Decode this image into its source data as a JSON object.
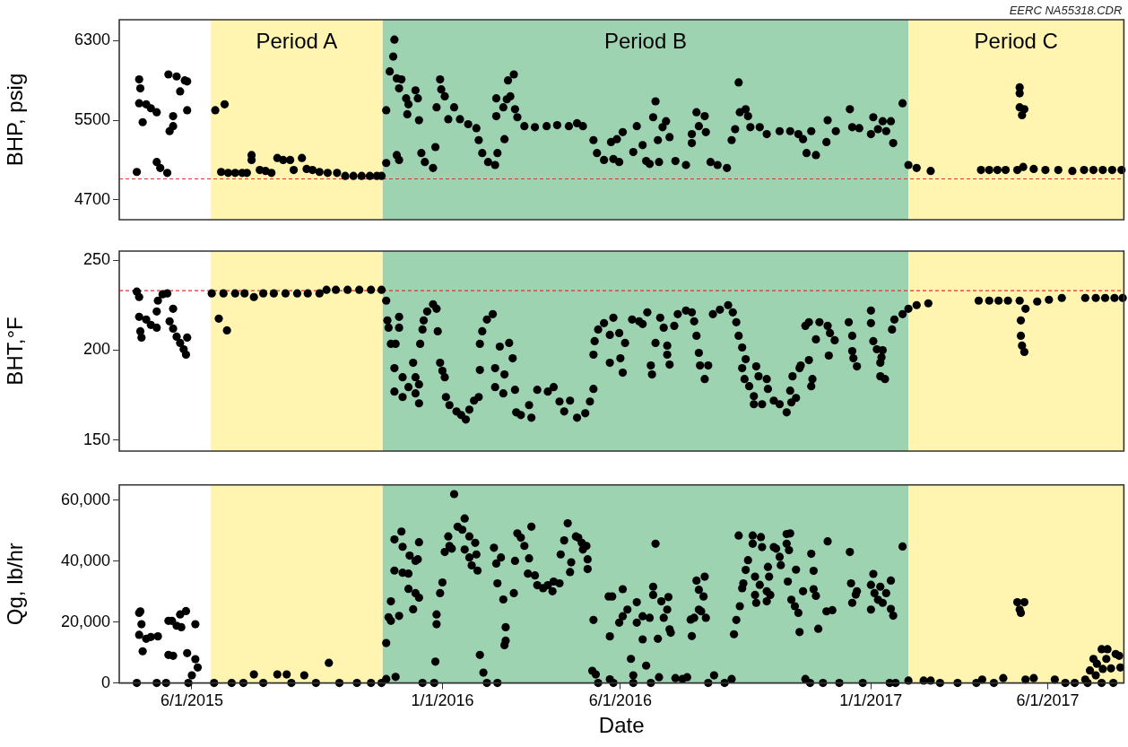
{
  "chart_data": [
    {
      "type": "scatter",
      "ylabel": "BHP, psig",
      "annotations": [
        "EERC NA55318.CDR"
      ],
      "tick_labels": "y",
      "marker": "circle",
      "xlim": [
        "2015-03-31",
        "2017-08-05"
      ],
      "ylim": [
        4500,
        6510
      ],
      "yticks": [
        4700,
        5500,
        6300
      ],
      "bands": [
        {
          "axis": "x",
          "from": "2015-06-17",
          "to": "2015-11-11",
          "label": "Period A",
          "color": "#fff5b0"
        },
        {
          "axis": "x",
          "from": "2015-11-11",
          "to": "2017-02-02",
          "label": "Period B",
          "color": "#9dd3b0"
        },
        {
          "axis": "x",
          "from": "2017-02-02",
          "to": "2017-08-05",
          "label": "Period C",
          "color": "#fff5b0"
        }
      ],
      "ref_lines": [
        {
          "axis": "y",
          "value": 4910,
          "color": "#e03030",
          "line_style": "dashed"
        }
      ],
      "series": [
        {
          "color": "#000000",
          "x": [
            "2015-04-15",
            "2015-04-17",
            "2015-04-18",
            "2015-04-17",
            "2015-04-20",
            "2015-04-23",
            "2015-04-27",
            "2015-05-02",
            "2015-05-02",
            "2015-05-05",
            "2015-05-11",
            "2015-05-12",
            "2015-05-13",
            "2015-05-16",
            "2015-05-16",
            "2015-05-19",
            "2015-05-22",
            "2015-05-26",
            "2015-05-28",
            "2015-05-28",
            "2015-06-21",
            "2015-06-29",
            "2015-06-26",
            "2015-07-02",
            "2015-07-08",
            "2015-07-14",
            "2015-07-18",
            "2015-07-22",
            "2015-07-22",
            "2015-07-29",
            "2015-08-03",
            "2015-08-08",
            "2015-08-13",
            "2015-08-18",
            "2015-08-24",
            "2015-08-27",
            "2015-09-03",
            "2015-09-07",
            "2015-09-12",
            "2015-09-18",
            "2015-09-25",
            "2015-10-03",
            "2015-10-10",
            "2015-10-17",
            "2015-10-24",
            "2015-10-31",
            "2015-11-06",
            "2015-11-10",
            "2015-11-14",
            "2015-11-14",
            "2015-11-21",
            "2015-11-20",
            "2015-11-17",
            "2015-11-23",
            "2015-11-27",
            "2015-11-25",
            "2015-11-23",
            "2015-11-25",
            "2015-12-01",
            "2015-12-03",
            "2015-12-02",
            "2015-12-09",
            "2015-12-11",
            "2015-12-12",
            "2015-12-14",
            "2015-12-17",
            "2015-12-24",
            "2015-12-26",
            "2015-12-30",
            "2015-12-31",
            "2015-12-27",
            "2016-01-03",
            "2016-01-11",
            "2016-01-06",
            "2016-01-16",
            "2016-01-23",
            "2016-01-30",
            "2016-02-01",
            "2016-02-04",
            "2016-02-09",
            "2016-02-15",
            "2016-02-17",
            "2016-02-16",
            "2016-02-16",
            "2016-02-22",
            "2016-02-23",
            "2016-02-25",
            "2016-02-28",
            "2016-02-26",
            "2016-03-02",
            "2016-03-03",
            "2016-03-05",
            "2016-03-11",
            "2016-03-20",
            "2016-03-30",
            "2016-04-08",
            "2016-04-18",
            "2016-04-25",
            "2016-04-30",
            "2016-05-09",
            "2016-05-12",
            "2016-05-18",
            "2016-05-24",
            "2016-05-26",
            "2016-05-31",
            "2016-05-29",
            "2016-06-03",
            "2016-06-12",
            "2016-06-15",
            "2016-06-20",
            "2016-06-23",
            "2016-06-26",
            "2016-06-29",
            "2016-07-01",
            "2016-07-03",
            "2016-07-07",
            "2016-07-10",
            "2016-07-13",
            "2016-07-04",
            "2016-07-18",
            "2016-07-27",
            "2016-08-01",
            "2016-08-01",
            "2016-08-05",
            "2016-08-07",
            "2016-08-12",
            "2016-08-13",
            "2016-08-17",
            "2016-08-23",
            "2016-08-31",
            "2016-09-04",
            "2016-09-07",
            "2016-09-10",
            "2016-09-11",
            "2016-09-16",
            "2016-09-18",
            "2016-09-20",
            "2016-09-28",
            "2016-10-04",
            "2016-10-15",
            "2016-10-24",
            "2016-10-31",
            "2016-11-04",
            "2016-11-07",
            "2016-11-15",
            "2016-11-11",
            "2016-11-24",
            "2016-11-25",
            "2016-12-02",
            "2016-12-14",
            "2016-12-16",
            "2016-12-22",
            "2017-01-01",
            "2017-01-03",
            "2017-01-07",
            "2017-01-11",
            "2017-01-14",
            "2017-01-18",
            "2017-01-20",
            "2017-01-28",
            "2017-02-02",
            "2017-02-09",
            "2017-02-21",
            "2017-04-05",
            "2017-04-12",
            "2017-04-19",
            "2017-04-26",
            "2017-05-06",
            "2017-05-08",
            "2017-05-08",
            "2017-05-08",
            "2017-05-10",
            "2017-05-12",
            "2017-05-11",
            "2017-05-20",
            "2017-05-30",
            "2017-06-10",
            "2017-06-22",
            "2017-07-02",
            "2017-07-10",
            "2017-07-18",
            "2017-07-26",
            "2017-08-03"
          ],
          "values": [
            4980,
            5910,
            5820,
            5670,
            5480,
            5660,
            5620,
            5580,
            5080,
            5020,
            4970,
            5960,
            5390,
            5440,
            5540,
            5940,
            5790,
            5900,
            5890,
            5600,
            5600,
            5660,
            4980,
            4970,
            4970,
            4970,
            4970,
            5150,
            5100,
            5000,
            4990,
            4970,
            5120,
            5100,
            5100,
            5000,
            5120,
            5010,
            5000,
            4980,
            4970,
            4970,
            4940,
            4940,
            4940,
            4940,
            4940,
            4940,
            5600,
            5070,
            6310,
            6140,
            5990,
            5920,
            5910,
            5820,
            5150,
            5100,
            5720,
            5660,
            5560,
            5800,
            5720,
            5500,
            5170,
            5080,
            5020,
            5230,
            5910,
            5810,
            5630,
            5740,
            5630,
            5510,
            5510,
            5460,
            5420,
            5300,
            5170,
            5080,
            5050,
            5170,
            5720,
            5540,
            5630,
            5310,
            5710,
            5740,
            5900,
            5960,
            5610,
            5530,
            5440,
            5430,
            5440,
            5450,
            5440,
            5470,
            5440,
            5300,
            5170,
            5100,
            5280,
            5110,
            5080,
            5310,
            5380,
            5180,
            5440,
            5250,
            5090,
            5060,
            5530,
            5690,
            5300,
            5430,
            5490,
            5330,
            5080,
            5090,
            5050,
            5360,
            5270,
            5580,
            5440,
            5540,
            5380,
            5080,
            5050,
            5020,
            5300,
            5410,
            5880,
            5580,
            5610,
            5540,
            5430,
            5430,
            5360,
            5390,
            5390,
            5360,
            5310,
            5170,
            5150,
            5390,
            5280,
            5500,
            5390,
            5610,
            5430,
            5420,
            5360,
            5530,
            5410,
            5490,
            5390,
            5490,
            5270,
            5670,
            5050,
            5020,
            4990,
            5000,
            5000,
            5000,
            5000,
            5000,
            5830,
            5770,
            5630,
            5550,
            5610,
            5030,
            5010,
            5000,
            5000,
            4990,
            5000,
            5000,
            5000,
            5000,
            5000
          ]
        }
      ]
    },
    {
      "type": "scatter",
      "ylabel": "BHT,°F",
      "tick_labels": "y",
      "marker": "circle",
      "xlim": [
        "2015-03-31",
        "2017-08-05"
      ],
      "ylim": [
        144,
        255
      ],
      "yticks": [
        150,
        200,
        250
      ],
      "bands": [
        {
          "axis": "x",
          "from": "2015-06-17",
          "to": "2015-11-11",
          "color": "#fff5b0"
        },
        {
          "axis": "x",
          "from": "2015-11-11",
          "to": "2017-02-02",
          "color": "#9dd3b0"
        },
        {
          "axis": "x",
          "from": "2017-02-02",
          "to": "2017-08-05",
          "color": "#fff5b0"
        }
      ],
      "ref_lines": [
        {
          "axis": "y",
          "value": 233,
          "color": "#e03030",
          "line_style": "dashed"
        }
      ],
      "series": [
        {
          "color": "#000000",
          "x": [
            "2015-04-15",
            "2015-04-17",
            "2015-04-17",
            "2015-04-18",
            "2015-04-19",
            "2015-04-23",
            "2015-04-27",
            "2015-05-02",
            "2015-05-02",
            "2015-05-03",
            "2015-05-07",
            "2015-05-11",
            "2015-05-13",
            "2015-05-16",
            "2015-05-16",
            "2015-05-19",
            "2015-05-22",
            "2015-05-25",
            "2015-05-27",
            "2015-05-28",
            "2015-06-18",
            "2015-06-24",
            "2015-07-01",
            "2015-06-28",
            "2015-07-08",
            "2015-07-16",
            "2015-07-24",
            "2015-08-01",
            "2015-08-10",
            "2015-08-20",
            "2015-08-30",
            "2015-09-08",
            "2015-09-18",
            "2015-09-24",
            "2015-10-02",
            "2015-10-12",
            "2015-10-22",
            "2015-11-01",
            "2015-11-10",
            "2015-11-14",
            "2015-11-15",
            "2015-11-16",
            "2015-11-18",
            "2015-11-22",
            "2015-11-21",
            "2015-11-21",
            "2015-11-25",
            "2015-11-25",
            "2015-11-28",
            "2015-11-28",
            "2015-12-03",
            "2015-12-07",
            "2015-12-09",
            "2015-12-09",
            "2015-12-12",
            "2015-12-12",
            "2015-12-13",
            "2015-12-15",
            "2015-12-16",
            "2015-12-19",
            "2015-12-24",
            "2015-12-27",
            "2015-12-28",
            "2015-12-30",
            "2016-01-01",
            "2016-01-03",
            "2016-01-04",
            "2016-01-07",
            "2016-01-13",
            "2016-01-17",
            "2016-01-21",
            "2016-01-24",
            "2016-01-28",
            "2016-02-01",
            "2016-02-02",
            "2016-02-02",
            "2016-02-04",
            "2016-02-08",
            "2016-02-13",
            "2016-02-15",
            "2016-02-15",
            "2016-02-19",
            "2016-02-22",
            "2016-02-23",
            "2016-02-27",
            "2016-03-01",
            "2016-03-03",
            "2016-03-04",
            "2016-03-08",
            "2016-03-15",
            "2016-03-17",
            "2016-03-22",
            "2016-03-31",
            "2016-04-05",
            "2016-04-10",
            "2016-04-14",
            "2016-04-19",
            "2016-04-25",
            "2016-05-02",
            "2016-05-06",
            "2016-05-09",
            "2016-05-09",
            "2016-05-10",
            "2016-05-13",
            "2016-05-18",
            "2016-05-23",
            "2016-05-23",
            "2016-05-26",
            "2016-05-31",
            "2016-06-01",
            "2016-06-03",
            "2016-06-05",
            "2016-06-11",
            "2016-06-17",
            "2016-06-20",
            "2016-06-24",
            "2016-06-27",
            "2016-06-28",
            "2016-07-01",
            "2016-07-05",
            "2016-07-08",
            "2016-07-11",
            "2016-07-11",
            "2016-07-13",
            "2016-07-17",
            "2016-07-20",
            "2016-07-27",
            "2016-08-01",
            "2016-08-03",
            "2016-08-05",
            "2016-08-07",
            "2016-08-08",
            "2016-08-12",
            "2016-08-15",
            "2016-08-19",
            "2016-08-25",
            "2016-09-01",
            "2016-09-05",
            "2016-09-08",
            "2016-09-10",
            "2016-09-13",
            "2016-09-16",
            "2016-09-13",
            "2016-09-15",
            "2016-09-19",
            "2016-09-23",
            "2016-09-23",
            "2016-09-25",
            "2016-09-27",
            "2016-09-30",
            "2016-10-04",
            "2016-10-05",
            "2016-10-10",
            "2016-10-15",
            "2016-10-21",
            "2016-10-24",
            "2016-10-25",
            "2016-10-29",
            "2016-10-26",
            "2016-11-01",
            "2016-11-02",
            "2016-11-09",
            "2016-11-12",
            "2016-11-11",
            "2016-11-06",
            "2016-11-09",
            "2016-11-15",
            "2016-11-18",
            "2016-11-25",
            "2016-11-26",
            "2016-11-27",
            "2016-12-01",
            "2016-12-13",
            "2016-12-16",
            "2016-12-16",
            "2016-12-17",
            "2016-12-20",
            "2017-01-01",
            "2017-01-01",
            "2017-01-03",
            "2017-01-06",
            "2017-01-11",
            "2017-01-09",
            "2017-01-10",
            "2017-01-09",
            "2017-01-13",
            "2017-01-19",
            "2017-01-21",
            "2017-01-28",
            "2017-02-02",
            "2017-02-09",
            "2017-02-19",
            "2017-04-03",
            "2017-04-12",
            "2017-04-20",
            "2017-04-28",
            "2017-05-08",
            "2017-05-09",
            "2017-05-09",
            "2017-05-10",
            "2017-05-12",
            "2017-05-13",
            "2017-05-23",
            "2017-06-02",
            "2017-06-13",
            "2017-07-03",
            "2017-07-12",
            "2017-07-20",
            "2017-07-28",
            "2017-08-04"
          ],
          "values": [
            232.5,
            229.5,
            218.5,
            210.5,
            207,
            217,
            214,
            212.5,
            221.5,
            227.5,
            231,
            231.5,
            216,
            223,
            212,
            207.5,
            204,
            200.5,
            197.5,
            207,
            231.5,
            217.5,
            211,
            231.5,
            231.5,
            231.5,
            229.5,
            231.5,
            231.5,
            231.5,
            231.5,
            231.5,
            231.5,
            233.5,
            233.5,
            233.5,
            233.5,
            233.5,
            233.5,
            227.5,
            216.5,
            212.5,
            203.5,
            203.5,
            190,
            177,
            218.5,
            212.5,
            185,
            174,
            179.5,
            193,
            185,
            176,
            181,
            170.5,
            203.5,
            211.5,
            216.5,
            221.5,
            225.5,
            223,
            210.5,
            193,
            188.5,
            185,
            174,
            169.5,
            166,
            164,
            161.5,
            167,
            172,
            174,
            189,
            203.5,
            210.5,
            217,
            220,
            179.5,
            190,
            202,
            176,
            186.5,
            204,
            195.5,
            178,
            165.5,
            164,
            169.5,
            162.5,
            178,
            177,
            179.5,
            171.5,
            166,
            172,
            162.5,
            165,
            171.5,
            178.5,
            197.5,
            205,
            211.5,
            215,
            208.5,
            193,
            218,
            209.5,
            195.5,
            187.5,
            204,
            217,
            216,
            214.5,
            221,
            191.5,
            186.5,
            204,
            218,
            212.5,
            202.5,
            197.5,
            192,
            213.5,
            220,
            222,
            221,
            216,
            208,
            198.5,
            191.5,
            184,
            191.5,
            220,
            222.5,
            225,
            221,
            215.5,
            208,
            201.5,
            195,
            190,
            184,
            180,
            174.5,
            170,
            191,
            185.5,
            170,
            184,
            178.5,
            172,
            170,
            165.5,
            177.5,
            171,
            173.5,
            185.5,
            190,
            191.5,
            194.5,
            184,
            180,
            213.5,
            215.5,
            206,
            215.5,
            213.5,
            197,
            209.5,
            205.5,
            215.5,
            208,
            199.5,
            195.5,
            191,
            222,
            215,
            205,
            200.5,
            200,
            193,
            196,
            185.5,
            184,
            211.5,
            217,
            220,
            223,
            225,
            226,
            227.5,
            227.5,
            227.5,
            227.5,
            227.5,
            216.5,
            208,
            202.5,
            199,
            223,
            227,
            228,
            229,
            229,
            229,
            229,
            229,
            229
          ]
        }
      ]
    },
    {
      "type": "scatter",
      "ylabel": "Qg, lb/hr",
      "xlabel": "Date",
      "marker": "circle",
      "xlim": [
        "2015-03-31",
        "2017-08-05"
      ],
      "ylim": [
        0,
        65000
      ],
      "xticks": [
        {
          "value": "2015-06-01",
          "label": "6/1/2015"
        },
        {
          "value": "2016-01-01",
          "label": "1/1/2016"
        },
        {
          "value": "2016-06-01",
          "label": "6/1/2016"
        },
        {
          "value": "2017-01-01",
          "label": "1/1/2017"
        },
        {
          "value": "2017-06-01",
          "label": "6/1/2017"
        }
      ],
      "yticks": [
        0,
        {
          "value": 20000,
          "label": "20,000"
        },
        {
          "value": 40000,
          "label": "40,000"
        },
        {
          "value": 60000,
          "label": "60,000"
        }
      ],
      "bands": [
        {
          "axis": "x",
          "from": "2015-06-17",
          "to": "2015-11-11",
          "color": "#fff5b0"
        },
        {
          "axis": "x",
          "from": "2015-11-11",
          "to": "2017-02-02",
          "color": "#9dd3b0"
        },
        {
          "axis": "x",
          "from": "2017-02-02",
          "to": "2017-08-05",
          "color": "#fff5b0"
        }
      ],
      "series": [
        {
          "color": "#000000",
          "x": [
            "2015-04-15",
            "2015-04-17",
            "2015-04-18",
            "2015-04-17",
            "2015-04-19",
            "2015-04-20",
            "2015-04-23",
            "2015-04-27",
            "2015-05-03",
            "2015-05-02",
            "2015-05-10",
            "2015-05-12",
            "2015-05-12",
            "2015-05-16",
            "2015-05-15",
            "2015-05-19",
            "2015-05-22",
            "2015-05-23",
            "2015-05-27",
            "2015-05-28",
            "2015-05-29",
            "2015-06-01",
            "2015-06-04",
            "2015-06-06",
            "2015-06-04",
            "2015-06-20",
            "2015-07-05",
            "2015-07-15",
            "2015-07-24",
            "2015-08-01",
            "2015-08-13",
            "2015-08-21",
            "2015-08-25",
            "2015-09-05",
            "2015-09-15",
            "2015-09-26",
            "2015-10-05",
            "2015-10-20",
            "2015-11-01",
            "2015-11-10",
            "2015-11-14",
            "2015-11-14",
            "2015-11-16",
            "2015-11-18",
            "2015-11-18",
            "2015-11-21",
            "2015-11-21",
            "2015-11-22",
            "2015-11-25",
            "2015-11-27",
            "2015-11-28",
            "2015-11-28",
            "2015-12-03",
            "2015-12-03",
            "2015-12-04",
            "2015-12-07",
            "2015-12-09",
            "2015-12-09",
            "2015-12-11",
            "2015-12-12",
            "2015-12-12",
            "2015-12-15",
            "2015-12-25",
            "2015-12-26",
            "2015-12-27",
            "2015-12-27",
            "2015-12-30",
            "2016-01-01",
            "2016-01-03",
            "2016-01-06",
            "2016-01-07",
            "2016-01-09",
            "2016-01-11",
            "2016-01-14",
            "2016-01-18",
            "2016-01-20",
            "2016-01-20",
            "2016-01-24",
            "2016-01-24",
            "2016-01-26",
            "2016-01-29",
            "2016-01-30",
            "2016-01-31",
            "2016-02-02",
            "2016-02-05",
            "2016-02-08",
            "2016-02-17",
            "2016-02-14",
            "2016-02-16",
            "2016-02-17",
            "2016-02-20",
            "2016-02-22",
            "2016-02-24",
            "2016-02-24",
            "2016-02-23",
            "2016-03-02",
            "2016-03-03",
            "2016-03-05",
            "2016-03-08",
            "2016-03-11",
            "2016-03-15",
            "2016-03-17",
            "2016-03-14",
            "2016-03-20",
            "2016-03-22",
            "2016-03-27",
            "2016-03-31",
            "2016-04-04",
            "2016-04-05",
            "2016-04-10",
            "2016-04-11",
            "2016-04-14",
            "2016-04-17",
            "2016-04-19",
            "2016-04-20",
            "2016-04-24",
            "2016-04-26",
            "2016-04-29",
            "2016-04-30",
            "2016-05-03",
            "2016-05-04",
            "2016-05-04",
            "2016-05-09",
            "2016-05-08",
            "2016-05-11",
            "2016-05-13",
            "2016-05-23",
            "2016-05-22",
            "2016-05-23",
            "2016-05-25",
            "2016-05-26",
            "2016-05-31",
            "2016-06-03",
            "2016-06-03",
            "2016-06-07",
            "2016-06-10",
            "2016-06-12",
            "2016-06-12",
            "2016-06-15",
            "2016-06-15",
            "2016-06-20",
            "2016-06-20",
            "2016-06-23",
            "2016-06-26",
            "2016-06-27",
            "2016-06-29",
            "2016-07-01",
            "2016-06-29",
            "2016-07-03",
            "2016-07-04",
            "2016-07-06",
            "2016-07-08",
            "2016-07-11",
            "2016-07-12",
            "2016-07-13",
            "2016-07-14",
            "2016-07-18",
            "2016-07-24",
            "2016-07-28",
            "2016-07-31",
            "2016-08-01",
            "2016-08-03",
            "2016-08-05",
            "2016-08-07",
            "2016-08-07",
            "2016-08-09",
            "2016-08-11",
            "2016-08-12",
            "2016-08-13",
            "2016-08-15",
            "2016-08-20",
            "2016-08-29",
            "2016-09-04",
            "2016-09-06",
            "2016-09-08",
            "2016-09-10",
            "2016-09-11",
            "2016-09-13",
            "2016-09-14",
            "2016-09-16",
            "2016-09-18",
            "2016-09-22",
            "2016-09-22",
            "2016-09-24",
            "2016-09-24",
            "2016-09-25",
            "2016-09-28",
            "2016-09-29",
            "2016-09-30",
            "2016-10-04",
            "2016-10-04",
            "2016-10-05",
            "2016-10-06",
            "2016-10-07",
            "2016-10-10",
            "2016-10-12",
            "2016-10-15",
            "2016-10-16",
            "2016-10-21",
            "2016-10-21",
            "2016-10-23",
            "2016-10-24",
            "2016-10-22",
            "2016-10-25",
            "2016-10-28",
            "2016-10-29",
            "2016-10-31",
            "2016-11-01",
            "2016-11-04",
            "2016-11-06",
            "2016-11-10",
            "2016-11-21",
            "2016-11-11",
            "2016-11-13",
            "2016-11-13",
            "2016-11-15",
            "2016-11-17",
            "2016-11-24",
            "2016-11-29",
            "2016-11-25",
            "2016-12-05",
            "2016-12-25",
            "2016-12-14",
            "2016-12-15",
            "2016-12-16",
            "2016-12-19",
            "2016-12-20",
            "2017-01-01",
            "2017-01-03",
            "2017-01-01",
            "2017-01-04",
            "2017-01-07",
            "2017-01-09",
            "2017-01-11",
            "2017-01-14",
            "2017-01-18",
            "2017-01-18",
            "2017-01-20",
            "2017-01-28",
            "2017-01-17",
            "2017-01-22",
            "2017-02-02",
            "2017-02-15",
            "2017-02-21",
            "2017-03-01",
            "2017-03-16",
            "2017-04-01",
            "2017-04-16",
            "2017-04-06",
            "2017-04-24",
            "2017-05-06",
            "2017-05-08",
            "2017-05-09",
            "2017-05-12",
            "2017-05-13",
            "2017-05-20",
            "2017-06-07",
            "2017-06-16",
            "2017-06-24",
            "2017-07-05",
            "2017-07-17",
            "2017-07-03",
            "2017-07-07",
            "2017-07-10",
            "2017-07-12",
            "2017-07-13",
            "2017-07-17",
            "2017-07-18",
            "2017-07-21",
            "2017-07-22",
            "2017-07-25",
            "2017-07-27",
            "2017-07-29",
            "2017-08-01",
            "2017-08-02"
          ],
          "values": [
            0,
            23000,
            23500,
            15800,
            19300,
            10400,
            14500,
            15100,
            15300,
            0,
            0,
            20400,
            9200,
            8900,
            20400,
            18800,
            22500,
            18300,
            23600,
            9800,
            0,
            2500,
            7800,
            5100,
            19300,
            0,
            0,
            0,
            2800,
            0,
            2800,
            2800,
            0,
            2500,
            0,
            6600,
            0,
            0,
            0,
            0,
            13100,
            1300,
            21600,
            20400,
            26800,
            36900,
            47100,
            2000,
            22000,
            49700,
            36200,
            44700,
            35900,
            30900,
            41800,
            24200,
            40100,
            29500,
            40600,
            46200,
            28000,
            0,
            0,
            7000,
            22500,
            19300,
            29500,
            33000,
            43000,
            48100,
            45000,
            44100,
            62000,
            51300,
            50300,
            54000,
            43800,
            48100,
            41200,
            38600,
            46000,
            42200,
            36900,
            9200,
            3400,
            0,
            0,
            44400,
            39200,
            32700,
            41200,
            27400,
            18300,
            13900,
            12400,
            29500,
            40100,
            49100,
            47700,
            45000,
            40900,
            51300,
            35900,
            35300,
            32100,
            31100,
            32100,
            30100,
            33300,
            32700,
            42200,
            46800,
            52400,
            36400,
            39600,
            48100,
            47700,
            46000,
            43800,
            45000,
            37400,
            40600,
            20700,
            4000,
            2800,
            0,
            1200,
            28400,
            15300,
            28400,
            0,
            19800,
            30800,
            21900,
            24100,
            7900,
            2500,
            0,
            19800,
            26500,
            14300,
            21900,
            5700,
            21400,
            0,
            28900,
            45700,
            31600,
            14500,
            1900,
            26800,
            21400,
            24100,
            28200,
            17600,
            16500,
            1600,
            1300,
            1900,
            20800,
            15400,
            21400,
            33600,
            30600,
            24100,
            23500,
            28400,
            34900,
            21400,
            0,
            2500,
            0,
            1300,
            16000,
            20700,
            48400,
            25200,
            31100,
            32700,
            37100,
            40300,
            48400,
            45700,
            34900,
            28900,
            26300,
            32200,
            47900,
            44600,
            30100,
            26800,
            38100,
            34900,
            28900,
            44600,
            44100,
            41400,
            38700,
            48900,
            45700,
            43600,
            49100,
            33300,
            27300,
            25200,
            37200,
            23000,
            16700,
            30100,
            1300,
            0,
            0,
            42400,
            36800,
            30800,
            28600,
            17800,
            23500,
            23900,
            46500,
            0,
            0,
            43000,
            32700,
            26300,
            29000,
            30100,
            24100,
            35800,
            32200,
            29500,
            27300,
            31600,
            26300,
            29500,
            33600,
            24300,
            22100,
            44800,
            0,
            0,
            800,
            800,
            800,
            0,
            0,
            0,
            0,
            1100,
            1600,
            26500,
            24100,
            23000,
            26500,
            1100,
            1600,
            1100,
            0,
            0,
            0,
            0,
            1100,
            4100,
            7900,
            2500,
            6300,
            11100,
            4600,
            7900,
            11100,
            4800,
            0,
            9500,
            8900,
            5100
          ]
        }
      ]
    }
  ]
}
